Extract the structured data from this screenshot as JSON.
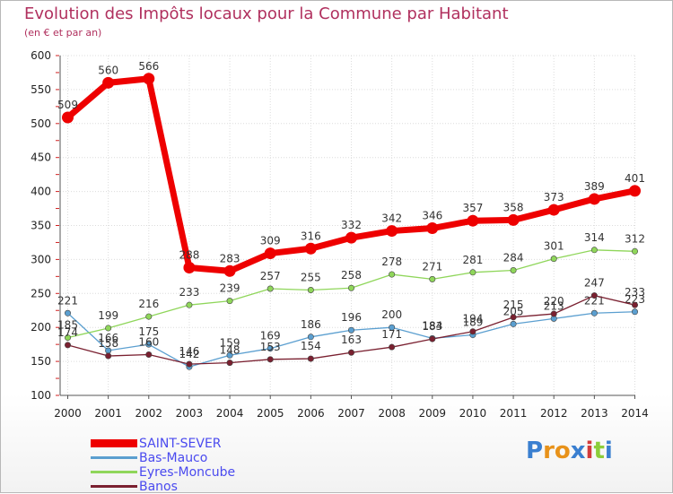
{
  "title": "Evolution des Impôts locaux pour la Commune par Habitant",
  "subtitle": "(en € et par an)",
  "brand": {
    "letters": [
      "P",
      "r",
      "o",
      "x",
      "i",
      "t",
      "i"
    ],
    "colors": [
      "#3a7fd0",
      "#e8921a",
      "#e8921a",
      "#3a7fd0",
      "#d23b3b",
      "#8ccd3a",
      "#3a7fd0"
    ]
  },
  "chart_data": {
    "type": "line",
    "title": "Evolution des Impôts locaux pour la Commune par Habitant",
    "subtitle": "(en € et par an)",
    "x": [
      "2000",
      "2001",
      "2002",
      "2003",
      "2004",
      "2005",
      "2006",
      "2007",
      "2008",
      "2009",
      "2010",
      "2011",
      "2012",
      "2013",
      "2014"
    ],
    "ylim": [
      100,
      600
    ],
    "yticks": [
      "100",
      "150",
      "200",
      "250",
      "300",
      "350",
      "400",
      "450",
      "500",
      "550",
      "600"
    ],
    "grid": true,
    "legend_position": "bottom-left",
    "series": [
      {
        "name": "SAINT-SEVER",
        "color": "#ee0000",
        "values": [
          509,
          560,
          566,
          288,
          283,
          309,
          316,
          332,
          342,
          346,
          357,
          358,
          373,
          389,
          401
        ],
        "labels": [
          "509",
          "560",
          "566",
          "288",
          "283",
          "309",
          "316",
          "332",
          "342",
          "346",
          "357",
          "358",
          "373",
          "389",
          "401"
        ]
      },
      {
        "name": "Bas-Mauco",
        "color": "#5b9fd0",
        "values": [
          221,
          166,
          175,
          142,
          159,
          169,
          186,
          196,
          200,
          184,
          189,
          205,
          213,
          221,
          223
        ],
        "labels": [
          "221",
          "166",
          "175",
          "142",
          "159",
          "169",
          "186",
          "196",
          "200",
          "184",
          "189",
          "205",
          "213",
          "221",
          "223"
        ]
      },
      {
        "name": "Eyres-Moncube",
        "color": "#8fd65a",
        "values": [
          185,
          199,
          216,
          233,
          239,
          257,
          255,
          258,
          278,
          271,
          281,
          284,
          301,
          314,
          312
        ],
        "labels": [
          "185",
          "199",
          "216",
          "233",
          "239",
          "257",
          "255",
          "258",
          "278",
          "271",
          "281",
          "284",
          "301",
          "314",
          "312"
        ]
      },
      {
        "name": "Banos",
        "color": "#7a2030",
        "values": [
          174,
          158,
          160,
          146,
          148,
          153,
          154,
          163,
          171,
          183,
          194,
          215,
          220,
          247,
          233
        ],
        "labels": [
          "174",
          "158",
          "160",
          "146",
          "148",
          "153",
          "154",
          "163",
          "171",
          "183",
          "194",
          "215",
          "220",
          "247",
          "233"
        ]
      }
    ]
  }
}
